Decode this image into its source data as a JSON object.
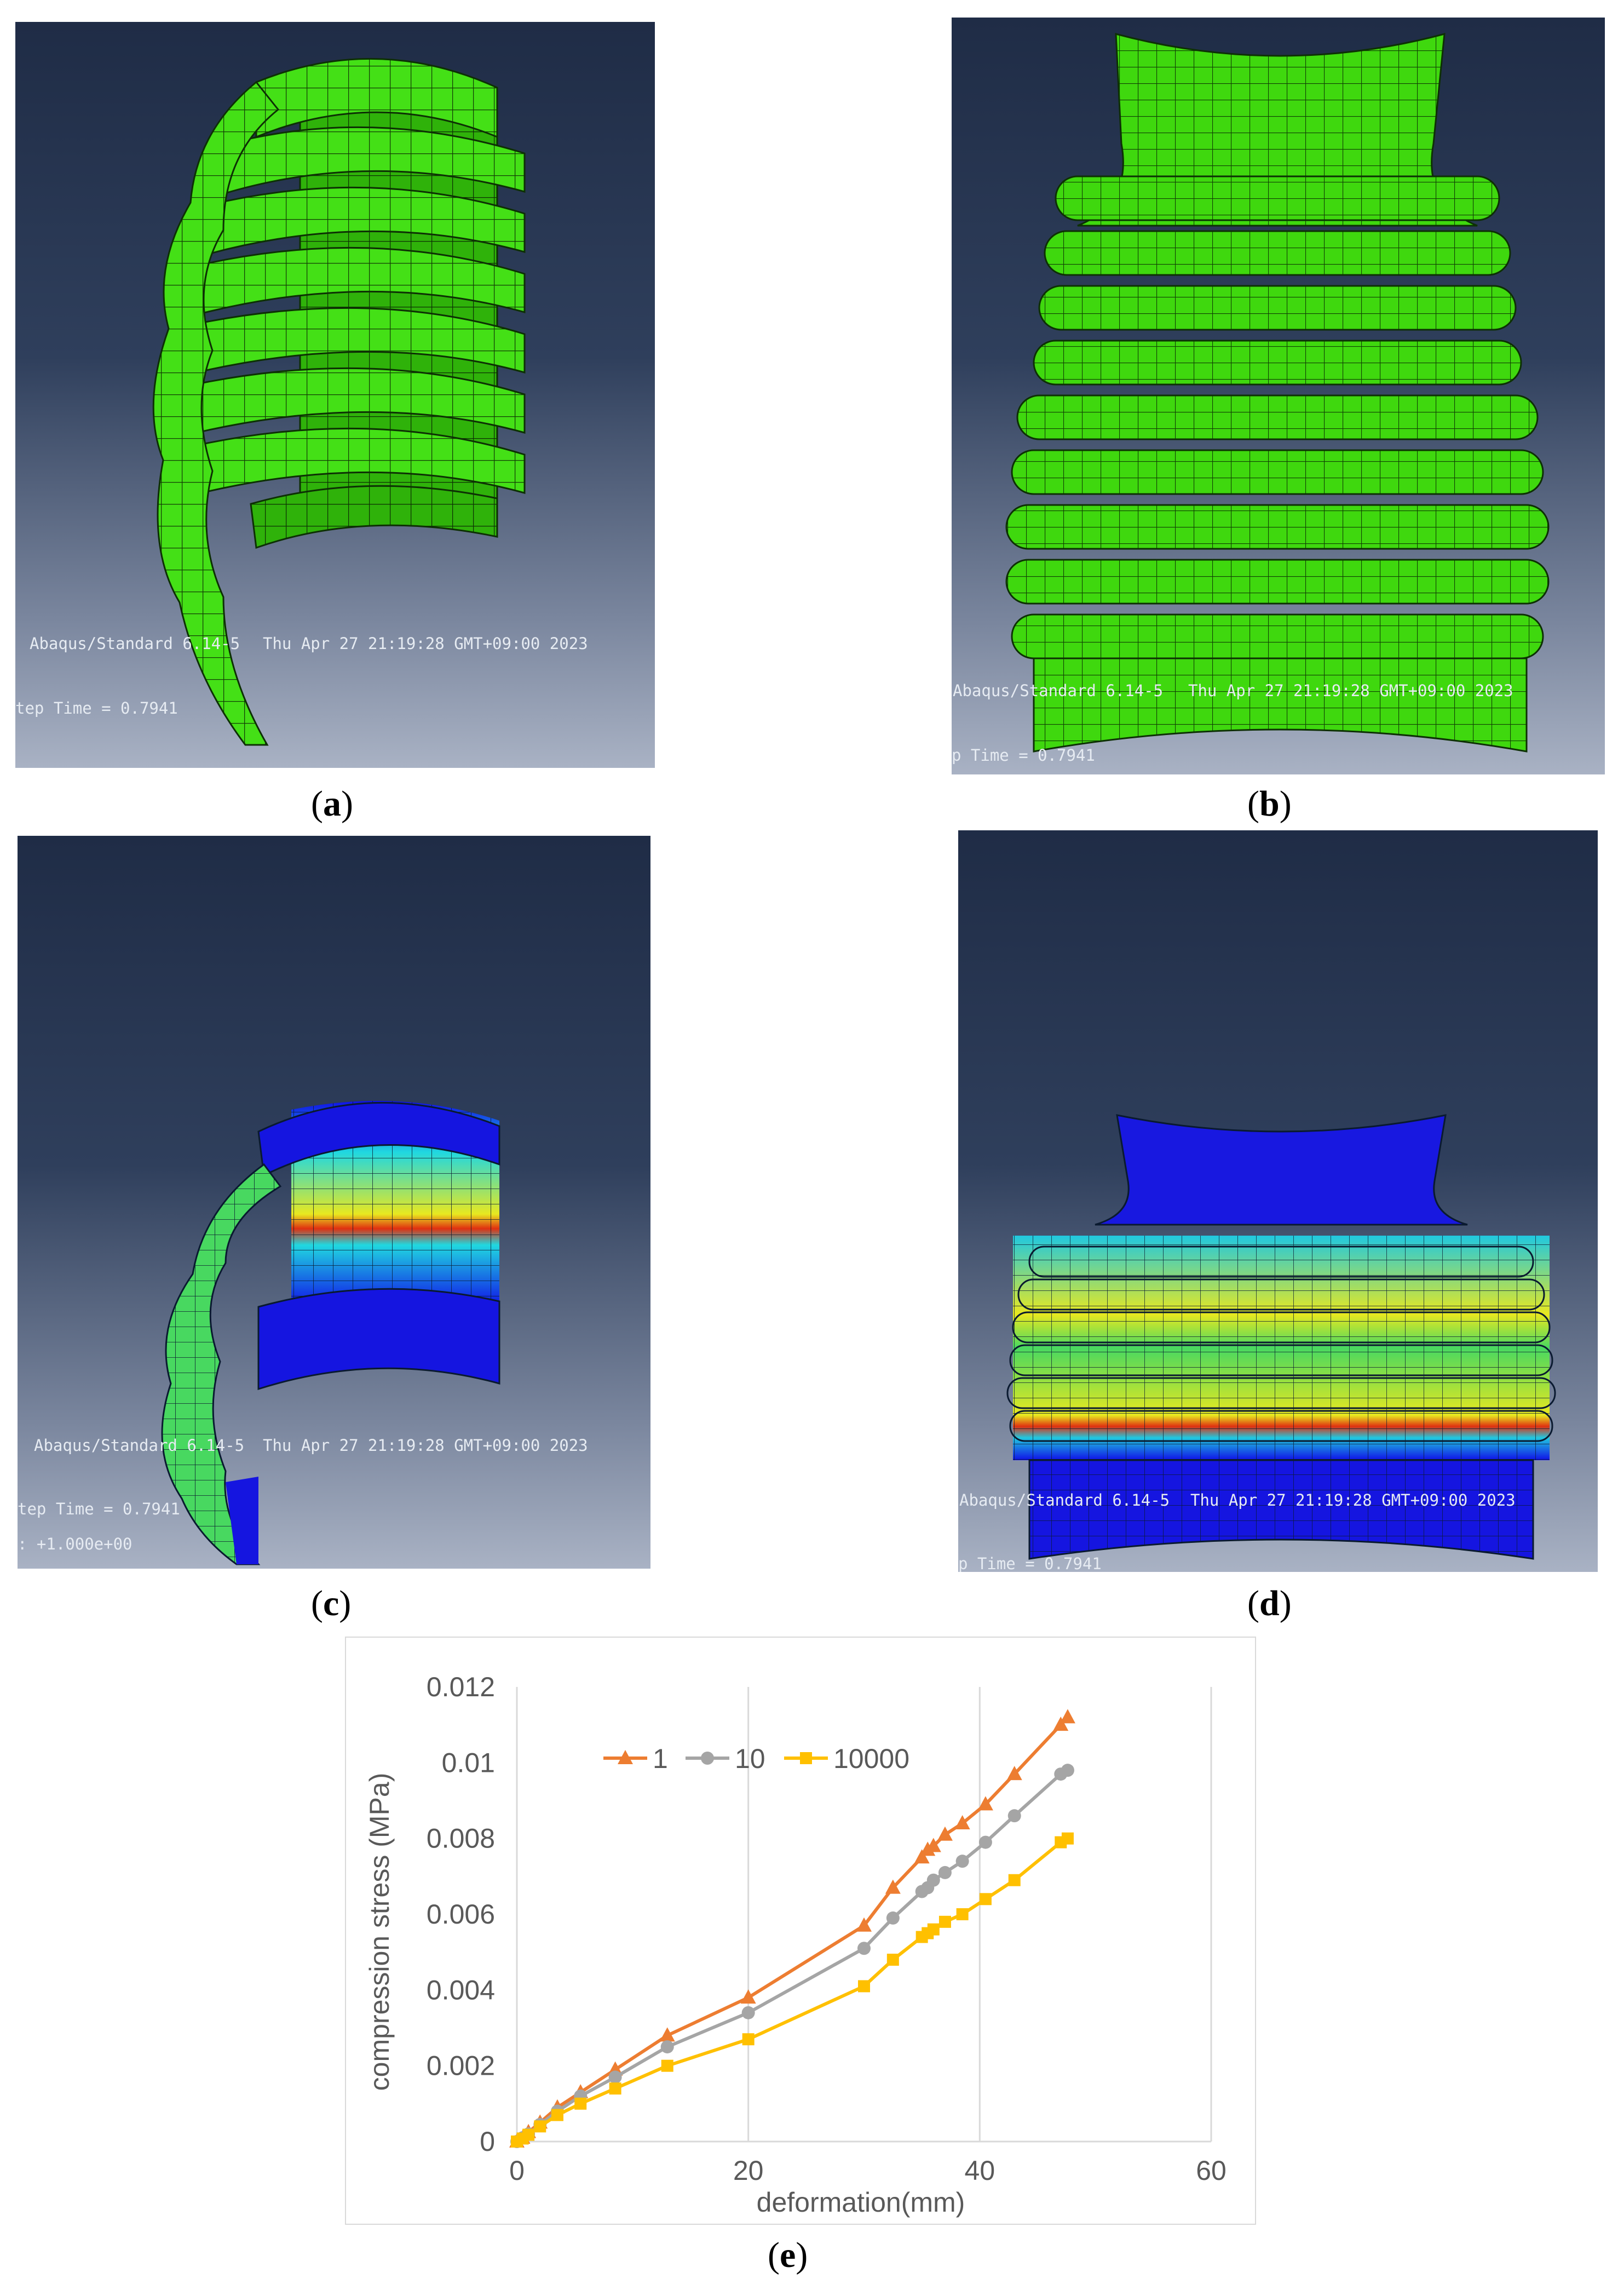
{
  "panels": [
    {
      "id": "a",
      "caption": "a",
      "software": "Abaqus/Standard 6.14-5",
      "timestamp": "Thu Apr 27 21:19:28 GMT+09:00 2023",
      "step_time": "tep Time =   0.7941",
      "extra": ""
    },
    {
      "id": "b",
      "caption": "b",
      "software": "Abaqus/Standard 6.14-5",
      "timestamp": "Thu Apr 27 21:19:28 GMT+09:00 2023",
      "step_time": "p Time =   0.7941",
      "extra": ""
    },
    {
      "id": "c",
      "caption": "c",
      "software": "Abaqus/Standard 6.14-5",
      "timestamp": "Thu Apr 27 21:19:28 GMT+09:00 2023",
      "step_time": "tep Time =   0.7941",
      "extra": ": +1.000e+00"
    },
    {
      "id": "d",
      "caption": "d",
      "software": "Abaqus/Standard 6.14-5",
      "timestamp": "Thu Apr 27 21:19:28 GMT+09:00 2023",
      "step_time": "p Time =   0.7941",
      "extra": ""
    }
  ],
  "colors": {
    "mesh_green": "#3fe00f",
    "mesh_green_dark": "#1f8a05",
    "stress_blue": "#1010e8",
    "stress_cyan": "#20d8e0",
    "stress_yellow": "#e8e820",
    "stress_red": "#e03010",
    "series_1": "#ed7d31",
    "series_10": "#a5a5a5",
    "series_10000": "#ffc000"
  },
  "chart_caption": "e",
  "chart_data": {
    "type": "line",
    "title": "",
    "xlabel": "deformation(mm)",
    "ylabel": "compression stress (MPa)",
    "xlim": [
      0,
      60
    ],
    "ylim": [
      0,
      0.012
    ],
    "x_ticks": [
      "0",
      "20",
      "40",
      "60"
    ],
    "y_ticks": [
      "0",
      "0.002",
      "0.004",
      "0.006",
      "0.008",
      "0.01",
      "0.012"
    ],
    "grid": "vertical",
    "legend": "top",
    "series": [
      {
        "name": "1",
        "marker": "triangle",
        "x": [
          0,
          0.5,
          1,
          2,
          3.5,
          5.5,
          8.5,
          13,
          20,
          30,
          32.5,
          35,
          35.5,
          36,
          37,
          38.5,
          40.5,
          43,
          47,
          47.6
        ],
        "y": [
          0,
          0.0001,
          0.00025,
          0.0005,
          0.0009,
          0.0013,
          0.0019,
          0.0028,
          0.0038,
          0.0057,
          0.0067,
          0.0075,
          0.0077,
          0.0078,
          0.0081,
          0.0084,
          0.0089,
          0.0097,
          0.011,
          0.0112
        ]
      },
      {
        "name": "10",
        "marker": "circle",
        "x": [
          0,
          0.5,
          1,
          2,
          3.5,
          5.5,
          8.5,
          13,
          20,
          30,
          32.5,
          35,
          35.5,
          36,
          37,
          38.5,
          40.5,
          43,
          47,
          47.6
        ],
        "y": [
          0,
          0.0001,
          0.0002,
          0.00045,
          0.0008,
          0.0012,
          0.0017,
          0.0025,
          0.0034,
          0.0051,
          0.0059,
          0.0066,
          0.0067,
          0.0069,
          0.0071,
          0.0074,
          0.0079,
          0.0086,
          0.0097,
          0.0098
        ]
      },
      {
        "name": "10000",
        "marker": "square",
        "x": [
          0,
          0.5,
          1,
          2,
          3.5,
          5.5,
          8.5,
          13,
          20,
          30,
          32.5,
          35,
          35.5,
          36,
          37,
          38.5,
          40.5,
          43,
          47,
          47.6
        ],
        "y": [
          0,
          8e-05,
          0.00018,
          0.0004,
          0.0007,
          0.001,
          0.0014,
          0.002,
          0.0027,
          0.0041,
          0.0048,
          0.0054,
          0.0055,
          0.0056,
          0.0058,
          0.006,
          0.0064,
          0.0069,
          0.0079,
          0.008
        ]
      }
    ]
  }
}
